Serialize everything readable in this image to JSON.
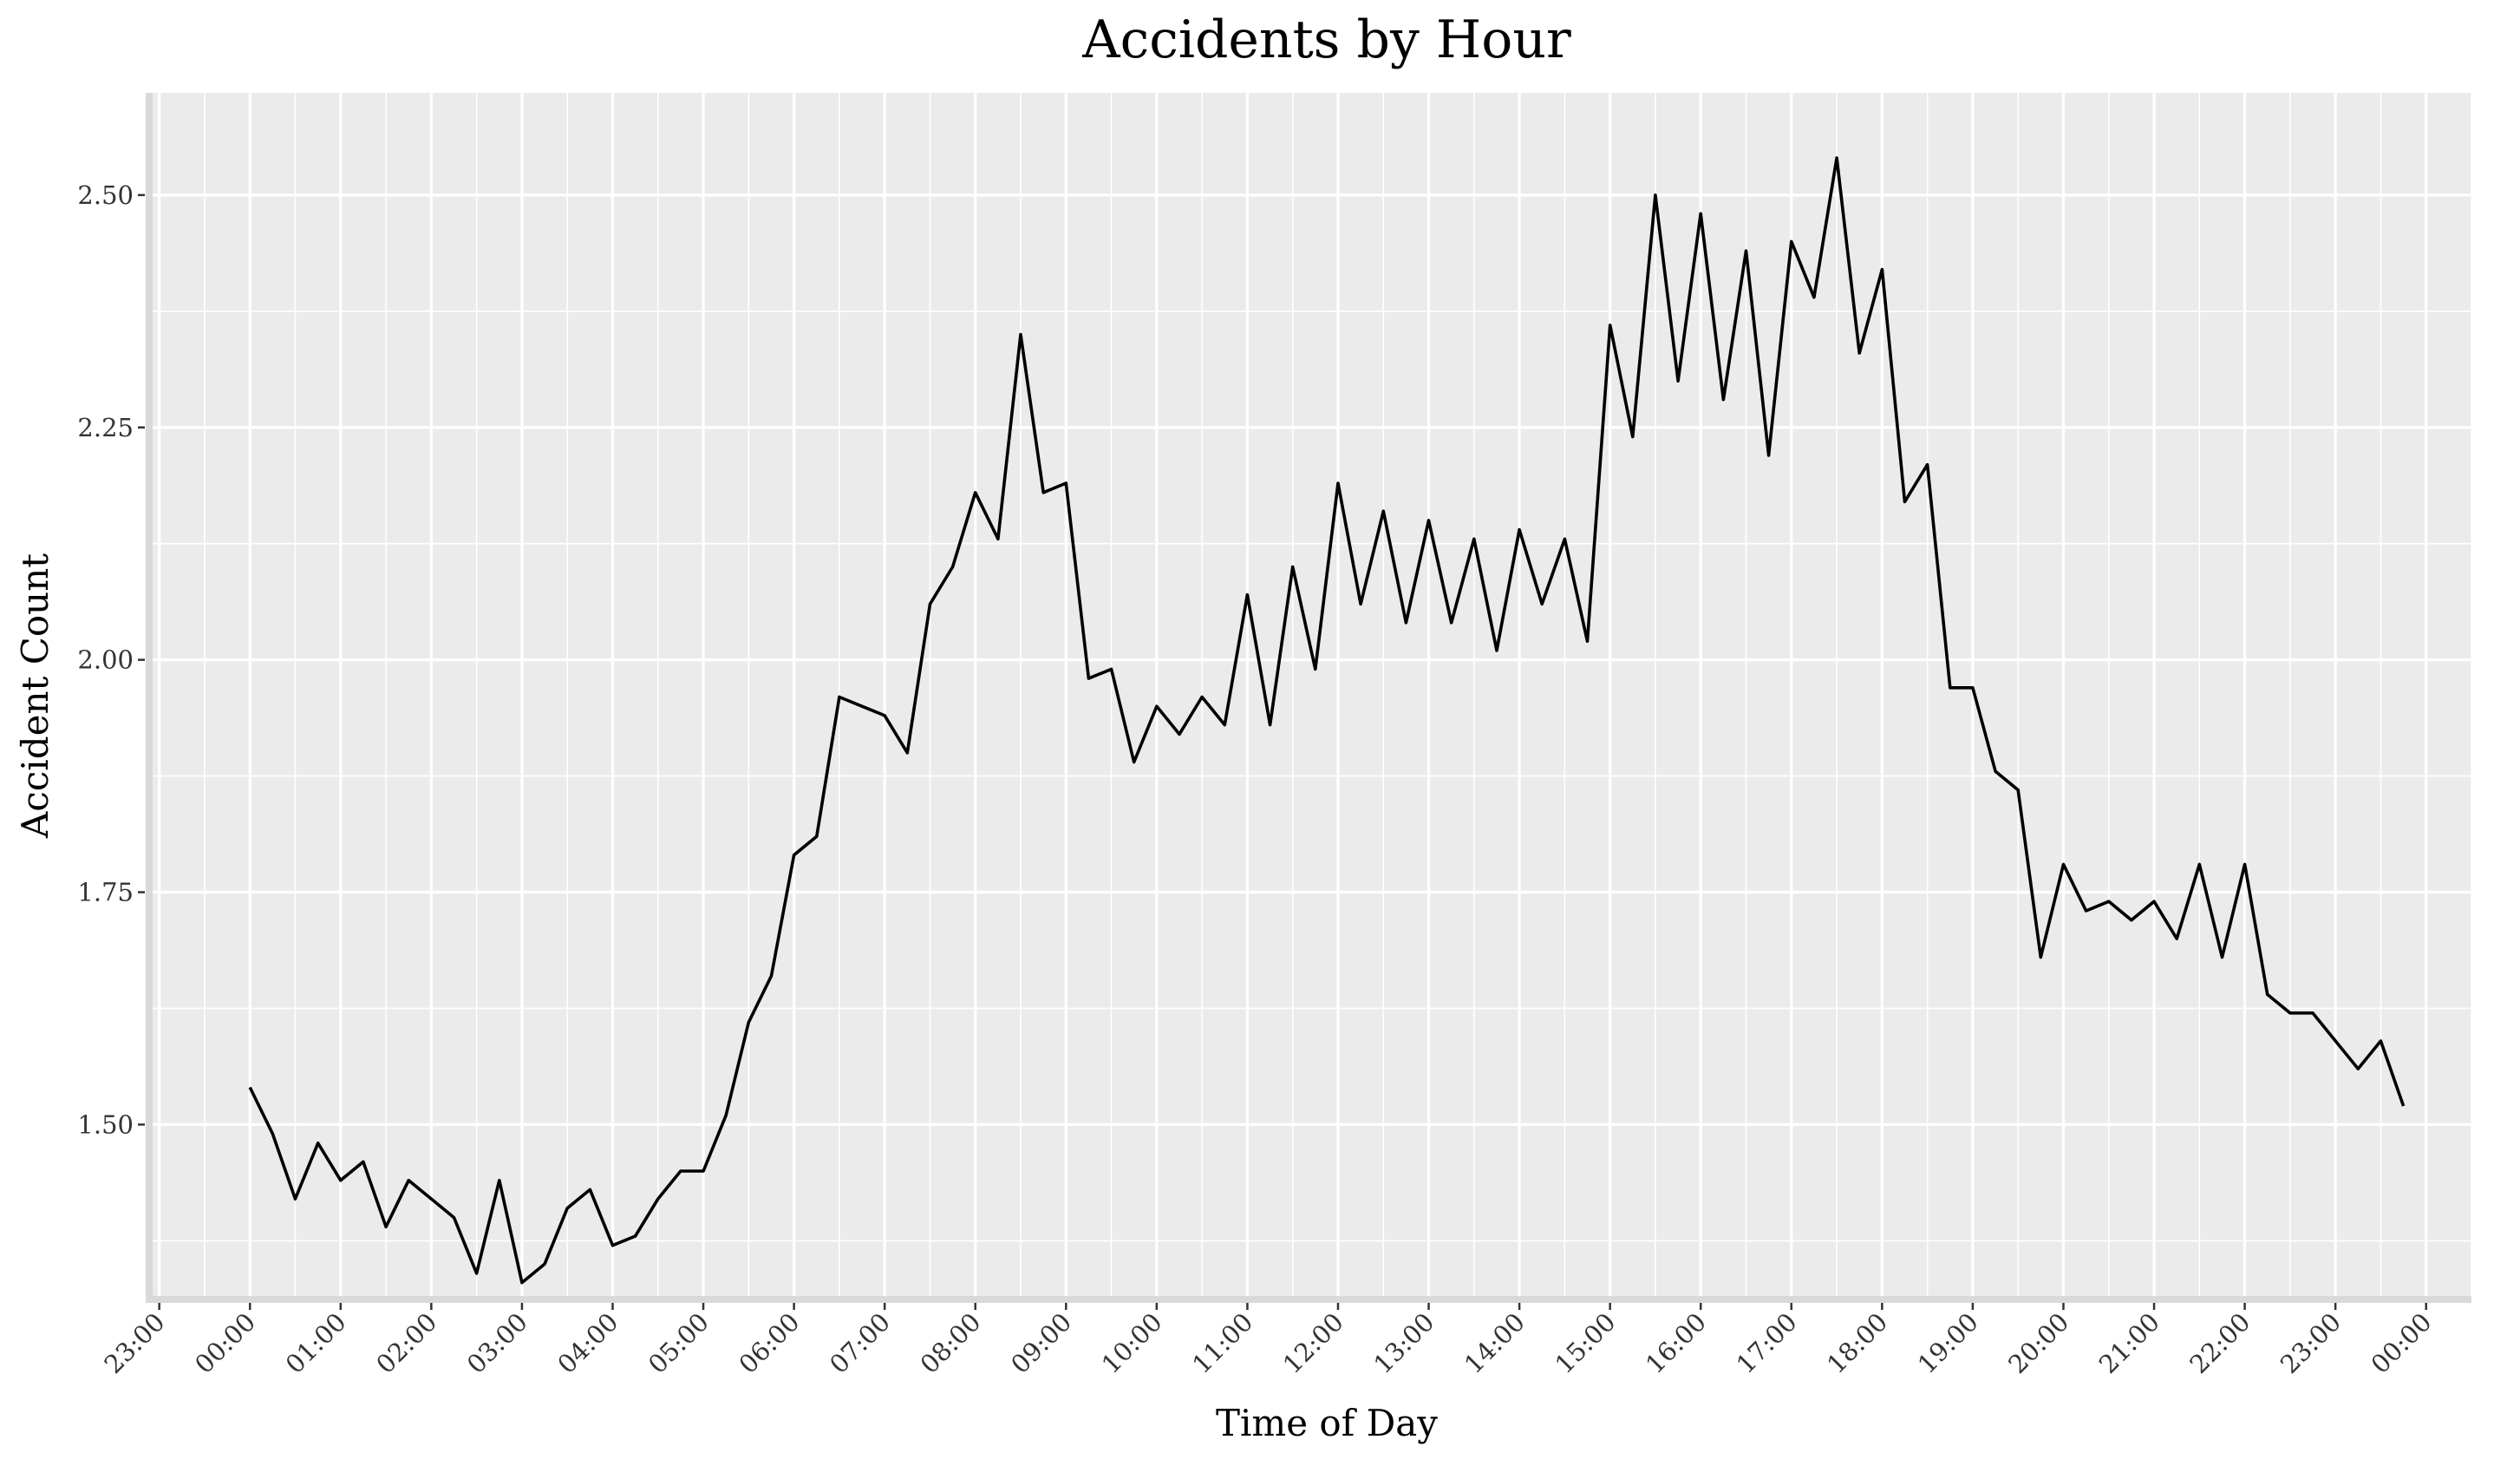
{
  "chart_data": {
    "type": "line",
    "title": "Accidents by Hour",
    "xlabel": "Time of Day",
    "ylabel": "Accident Count",
    "y_ticks": [
      "1.50",
      "1.75",
      "2.00",
      "2.25",
      "2.50"
    ],
    "y_tick_values": [
      1.5,
      1.75,
      2.0,
      2.25,
      2.5
    ],
    "x_tick_labels": [
      "23:00",
      "00:00",
      "01:00",
      "02:00",
      "03:00",
      "04:00",
      "05:00",
      "06:00",
      "07:00",
      "08:00",
      "09:00",
      "10:00",
      "11:00",
      "12:00",
      "13:00",
      "14:00",
      "15:00",
      "16:00",
      "17:00",
      "18:00",
      "19:00",
      "20:00",
      "21:00",
      "22:00",
      "23:00",
      "00:00"
    ],
    "x_tick_hours": [
      -1,
      0,
      1,
      2,
      3,
      4,
      5,
      6,
      7,
      8,
      9,
      10,
      11,
      12,
      13,
      14,
      15,
      16,
      17,
      18,
      19,
      20,
      21,
      22,
      23,
      24
    ],
    "xlim_hours": [
      -1.15,
      24.5
    ],
    "ylim": [
      1.31,
      2.61
    ],
    "grid": true,
    "background": "#EBEBEB",
    "line_color": "#000000",
    "series": [
      {
        "x_hours": [
          0,
          0.25,
          0.5,
          0.75,
          1,
          1.25,
          1.5,
          1.75,
          2,
          2.25,
          2.5,
          2.75,
          3,
          3.25,
          3.5,
          3.75,
          4,
          4.25,
          4.5,
          4.75,
          5,
          5.25,
          5.5,
          5.75,
          6,
          6.25,
          6.5,
          6.75,
          7,
          7.25,
          7.5,
          7.75,
          8,
          8.25,
          8.5,
          8.75,
          9,
          9.25,
          9.5,
          9.75,
          10,
          10.25,
          10.5,
          10.75,
          11,
          11.25,
          11.5,
          11.75,
          12,
          12.25,
          12.5,
          12.75,
          13,
          13.25,
          13.5,
          13.75,
          14,
          14.25,
          14.5,
          14.75,
          15,
          15.25,
          15.5,
          15.75,
          16,
          16.25,
          16.5,
          16.75,
          17,
          17.25,
          17.5,
          17.75,
          18,
          18.25,
          18.5,
          18.75,
          19,
          19.25,
          19.5,
          19.75,
          20,
          20.25,
          20.5,
          20.75,
          21,
          21.25,
          21.5,
          21.75,
          22,
          22.25,
          22.5,
          22.75,
          23,
          23.25,
          23.5,
          23.75
        ],
        "values": [
          1.54,
          1.49,
          1.42,
          1.48,
          1.44,
          1.46,
          1.39,
          1.44,
          1.42,
          1.4,
          1.34,
          1.44,
          1.33,
          1.35,
          1.41,
          1.43,
          1.37,
          1.38,
          1.42,
          1.45,
          1.45,
          1.51,
          1.61,
          1.66,
          1.79,
          1.81,
          1.96,
          1.95,
          1.94,
          1.9,
          2.06,
          2.1,
          2.18,
          2.13,
          2.35,
          2.18,
          2.19,
          1.98,
          1.99,
          1.89,
          1.95,
          1.92,
          1.96,
          1.93,
          2.07,
          1.93,
          2.1,
          1.99,
          2.19,
          2.06,
          2.16,
          2.04,
          2.15,
          2.04,
          2.13,
          2.01,
          2.14,
          2.06,
          2.13,
          2.02,
          2.36,
          2.24,
          2.5,
          2.3,
          2.48,
          2.28,
          2.44,
          2.22,
          2.45,
          2.39,
          2.54,
          2.33,
          2.42,
          2.17,
          2.21,
          1.97,
          1.97,
          1.88,
          1.86,
          1.68,
          1.78,
          1.73,
          1.74,
          1.72,
          1.74,
          1.7,
          1.78,
          1.68,
          1.78,
          1.64,
          1.62,
          1.62,
          1.59,
          1.56,
          1.59,
          1.52
        ]
      }
    ]
  }
}
